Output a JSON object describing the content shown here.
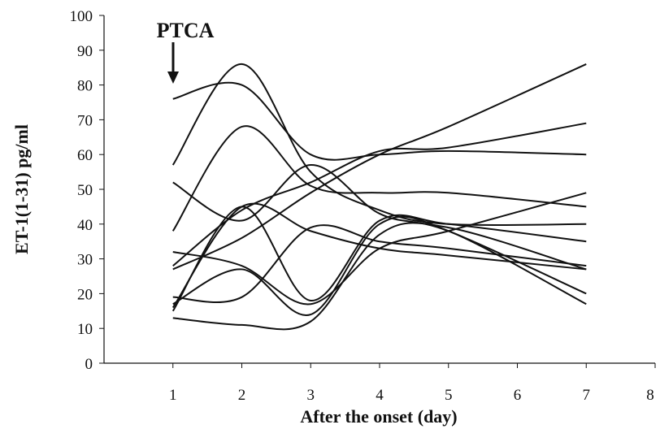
{
  "chart_data": {
    "type": "line",
    "annotation": "PTCA",
    "y_label": "ET-1(1-31) pg/ml",
    "x_label": "After the onset (day)",
    "x": [
      1,
      2,
      3,
      4,
      5,
      7
    ],
    "color": "#111111",
    "series": [
      {
        "values": [
          76,
          80,
          60,
          60,
          61,
          60
        ]
      },
      {
        "values": [
          57,
          86,
          55,
          44,
          40,
          40
        ]
      },
      {
        "values": [
          38,
          68,
          51,
          49,
          49,
          45
        ]
      },
      {
        "values": [
          52,
          41,
          57,
          43,
          38,
          20
        ]
      },
      {
        "values": [
          27,
          36,
          49,
          60,
          68,
          86
        ]
      },
      {
        "values": [
          28,
          44,
          52,
          61,
          62,
          69
        ]
      },
      {
        "values": [
          32,
          28,
          17,
          33,
          38,
          49
        ]
      },
      {
        "values": [
          16,
          45,
          38,
          33,
          31,
          27
        ]
      },
      {
        "values": [
          15,
          45,
          18,
          41,
          40,
          35
        ]
      },
      {
        "values": [
          19,
          19,
          39,
          35,
          33,
          28
        ]
      },
      {
        "values": [
          17,
          27,
          14,
          40,
          38,
          17
        ]
      },
      {
        "values": [
          13,
          11,
          12,
          37,
          39,
          27
        ]
      }
    ],
    "xlim": [
      0,
      8
    ],
    "xticks": [
      1,
      2,
      3,
      4,
      5,
      6,
      7,
      8
    ],
    "ylim": [
      0,
      100
    ],
    "yticks": [
      0,
      10,
      20,
      30,
      40,
      50,
      60,
      70,
      80,
      90,
      100
    ],
    "grid": false
  }
}
